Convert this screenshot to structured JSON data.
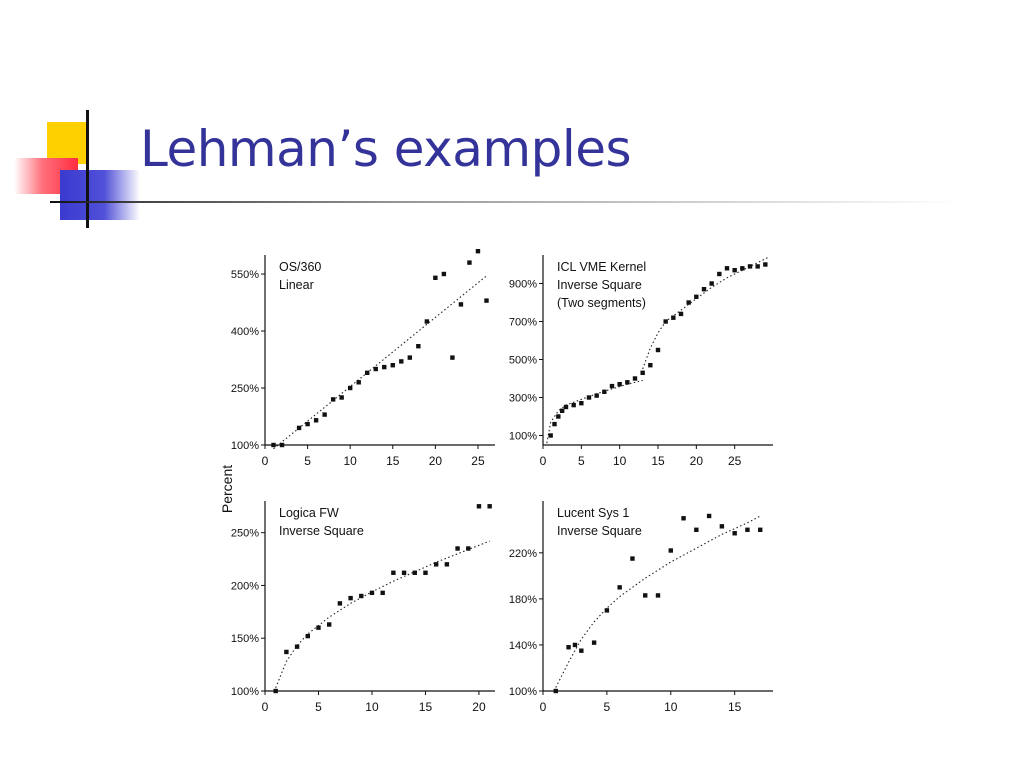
{
  "slide": {
    "title": "Lehman’s examples"
  },
  "figure": {
    "ylabel": "Percent"
  },
  "chart_data": [
    {
      "type": "scatter",
      "title": "OS/360",
      "subtitle": "Linear",
      "xlabel": "",
      "ylabel": "Percent",
      "xlim": [
        0,
        27
      ],
      "ylim": [
        100,
        600
      ],
      "xticks": [
        0,
        5,
        10,
        15,
        20,
        25
      ],
      "yticks": [
        100,
        250,
        400,
        550
      ],
      "ytick_labels": [
        "100%",
        "250%",
        "400%",
        "550%"
      ],
      "grid": false,
      "series": [
        {
          "x": [
            1,
            2,
            4,
            5,
            6,
            7,
            8,
            9,
            10,
            11,
            12,
            13,
            14,
            15,
            16,
            17,
            18,
            19,
            20,
            21,
            22,
            23,
            24,
            25,
            26
          ],
          "y": [
            100,
            100,
            145,
            155,
            165,
            180,
            220,
            225,
            250,
            265,
            290,
            300,
            305,
            310,
            320,
            330,
            360,
            425,
            540,
            550,
            330,
            470,
            580,
            610,
            480
          ]
        }
      ],
      "fit": {
        "kind": "linear",
        "x": [
          1,
          26
        ],
        "y": [
          90,
          545
        ]
      }
    },
    {
      "type": "scatter",
      "title": "ICL VME Kernel",
      "subtitle": "Inverse Square",
      "note": "(Two segments)",
      "xlabel": "",
      "ylabel": "Percent",
      "xlim": [
        0,
        30
      ],
      "ylim": [
        50,
        1050
      ],
      "xticks": [
        0,
        5,
        10,
        15,
        20,
        25
      ],
      "yticks": [
        100,
        300,
        500,
        700,
        900
      ],
      "ytick_labels": [
        "100%",
        "300%",
        "500%",
        "700%",
        "900%"
      ],
      "grid": false,
      "series": [
        {
          "x": [
            1,
            1.5,
            2,
            2.5,
            3,
            4,
            5,
            6,
            7,
            8,
            9,
            10,
            11,
            12,
            13,
            14,
            15,
            16,
            17,
            18,
            19,
            20,
            21,
            22,
            23,
            24,
            25,
            26,
            27,
            28,
            29
          ],
          "y": [
            100,
            160,
            200,
            230,
            250,
            260,
            270,
            300,
            310,
            330,
            360,
            370,
            380,
            400,
            430,
            470,
            550,
            700,
            720,
            740,
            800,
            830,
            870,
            900,
            950,
            980,
            970,
            980,
            990,
            990,
            1000
          ]
        }
      ],
      "fit_segments": [
        {
          "x": [
            0.5,
            1,
            2,
            3,
            5,
            7,
            9,
            11,
            13
          ],
          "y": [
            60,
            170,
            230,
            260,
            290,
            320,
            345,
            370,
            390
          ]
        },
        {
          "x": [
            13,
            14,
            15,
            16,
            18,
            20,
            22,
            24,
            26,
            28,
            29.5
          ],
          "y": [
            450,
            560,
            640,
            700,
            760,
            820,
            880,
            930,
            970,
            1010,
            1040
          ]
        }
      ]
    },
    {
      "type": "scatter",
      "title": "Logica FW",
      "subtitle": "Inverse Square",
      "xlabel": "",
      "ylabel": "Percent",
      "xlim": [
        0,
        21.5
      ],
      "ylim": [
        100,
        280
      ],
      "xticks": [
        0,
        5,
        10,
        15,
        20
      ],
      "yticks": [
        100,
        150,
        200,
        250
      ],
      "ytick_labels": [
        "100%",
        "150%",
        "200%",
        "250%"
      ],
      "grid": false,
      "series": [
        {
          "x": [
            1,
            2,
            3,
            4,
            5,
            6,
            7,
            8,
            9,
            10,
            11,
            12,
            13,
            14,
            15,
            16,
            17,
            18,
            19,
            20,
            21
          ],
          "y": [
            100,
            137,
            142,
            152,
            160,
            163,
            183,
            188,
            190,
            193,
            193,
            212,
            212,
            212,
            212,
            220,
            220,
            235,
            235,
            275,
            275
          ]
        }
      ],
      "fit": {
        "kind": "inverse-square",
        "x": [
          1,
          2,
          3,
          4,
          6,
          8,
          10,
          12,
          14,
          16,
          18,
          20,
          21
        ],
        "y": [
          103,
          128,
          143,
          154,
          170,
          183,
          194,
          204,
          213,
          222,
          230,
          238,
          242
        ]
      }
    },
    {
      "type": "scatter",
      "title": "Lucent Sys 1",
      "subtitle": "Inverse Square",
      "xlabel": "",
      "ylabel": "Percent",
      "xlim": [
        0,
        18
      ],
      "ylim": [
        100,
        265
      ],
      "xticks": [
        0,
        5,
        10,
        15
      ],
      "yticks": [
        100,
        140,
        180,
        220
      ],
      "ytick_labels": [
        "100%",
        "140%",
        "180%",
        "220%"
      ],
      "grid": false,
      "series": [
        {
          "x": [
            1,
            2,
            2.5,
            3,
            4,
            5,
            6,
            7,
            8,
            9,
            10,
            11,
            12,
            13,
            14,
            15,
            16,
            17
          ],
          "y": [
            100,
            138,
            140,
            135,
            142,
            170,
            190,
            215,
            183,
            183,
            222,
            250,
            240,
            252,
            243,
            237,
            240,
            240
          ]
        }
      ],
      "fit": {
        "kind": "inverse-square",
        "x": [
          1,
          2,
          3,
          4,
          5,
          6,
          8,
          10,
          12,
          14,
          16,
          17
        ],
        "y": [
          103,
          125,
          145,
          160,
          172,
          182,
          198,
          212,
          224,
          236,
          246,
          252
        ]
      }
    }
  ]
}
